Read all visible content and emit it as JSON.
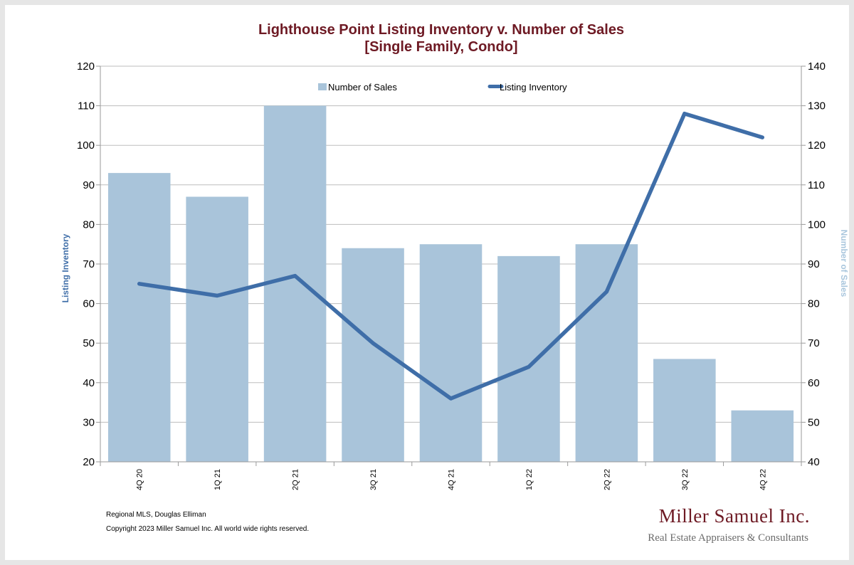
{
  "chart_data": {
    "type": "bar",
    "title": "Lighthouse Point Listing Inventory v. Number of Sales",
    "subtitle": "[Single Family, Condo]",
    "categories": [
      "4Q 20",
      "1Q 21",
      "2Q 21",
      "3Q 21",
      "4Q 21",
      "1Q 22",
      "2Q 22",
      "3Q 22",
      "4Q 22"
    ],
    "series": [
      {
        "name": "Number of Sales",
        "type": "bar",
        "axis": "right",
        "color": "#a9c4da",
        "values": [
          113,
          107,
          130,
          94,
          95,
          92,
          95,
          66,
          53
        ]
      },
      {
        "name": "Listing Inventory",
        "type": "line",
        "axis": "left",
        "color": "#3f6ea8",
        "values": [
          65,
          62,
          67,
          50,
          36,
          44,
          63,
          108,
          102
        ]
      }
    ],
    "left_axis": {
      "label": "Listing Inventory",
      "range": [
        20,
        120
      ],
      "ticks": [
        20,
        30,
        40,
        50,
        60,
        70,
        80,
        90,
        100,
        110,
        120
      ]
    },
    "right_axis": {
      "label": "Number of Sales",
      "range": [
        40,
        140
      ],
      "ticks": [
        40,
        50,
        60,
        70,
        80,
        90,
        100,
        110,
        120,
        130,
        140
      ]
    },
    "grid": true,
    "legend_position": "top-center"
  },
  "footer": {
    "source": "Regional MLS, Douglas Elliman",
    "copyright": "Copyright 2023 Miller Samuel Inc.  All world wide rights reserved."
  },
  "brand": {
    "name": "Miller Samuel Inc.",
    "tagline": "Real Estate Appraisers & Consultants"
  }
}
